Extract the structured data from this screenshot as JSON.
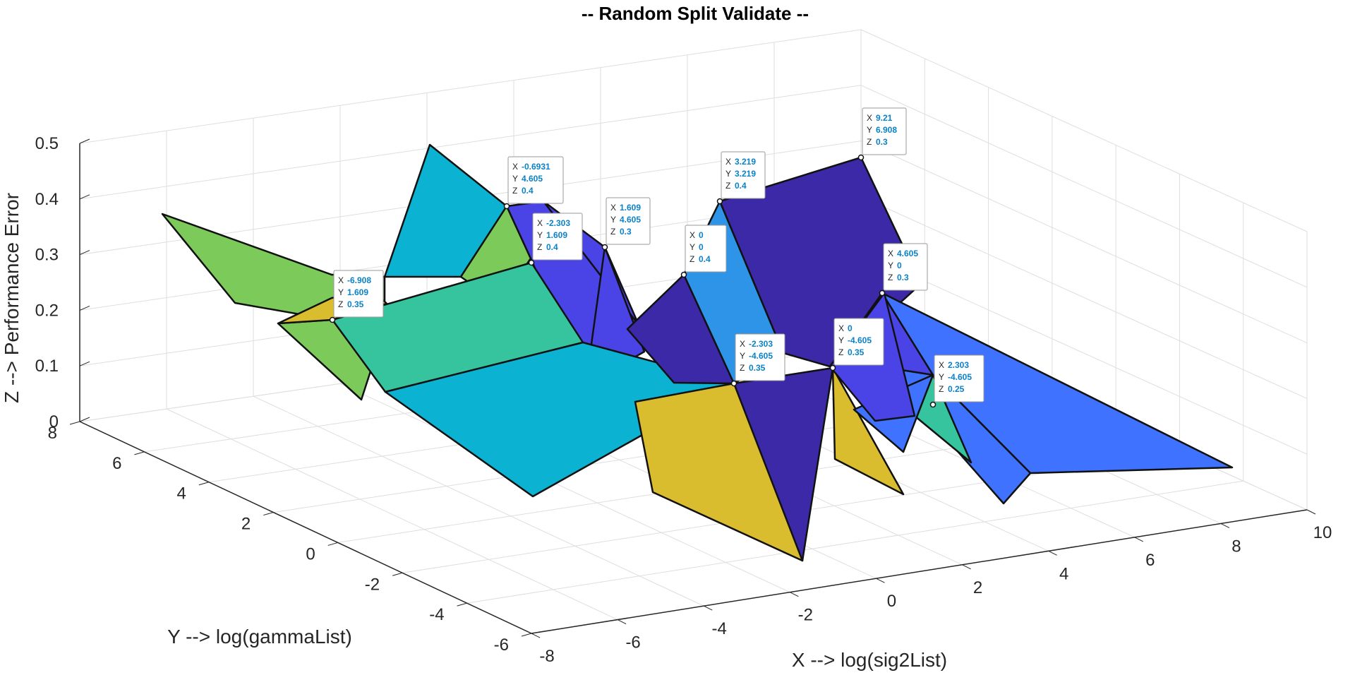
{
  "chart_data": {
    "type": "surface3d",
    "title": "-- Random Split Validate --",
    "xlabel": "X --> log(sig2List)",
    "ylabel": "Y --> log(gammaList)",
    "zlabel": "Z --> Performance Error",
    "xlim": [
      -8,
      10
    ],
    "ylim": [
      -6,
      8
    ],
    "zlim": [
      0,
      0.5
    ],
    "x_ticks": [
      "-8",
      "-6",
      "-4",
      "-2",
      "0",
      "2",
      "4",
      "6",
      "8",
      "10"
    ],
    "y_ticks": [
      "-6",
      "-4",
      "-2",
      "0",
      "2",
      "4",
      "6",
      "8"
    ],
    "z_ticks": [
      "0",
      "0.1",
      "0.2",
      "0.3",
      "0.4",
      "0.5"
    ],
    "grid": true,
    "facet_colors": [
      "#0BB2D1",
      "#3B29A8",
      "#4A44E6",
      "#2E94E8",
      "#3F72FF",
      "#35C49E",
      "#7CCB5A",
      "#DABD2E"
    ],
    "datatips": [
      {
        "x": "-0.6931",
        "y": "4.605",
        "z": "0.4"
      },
      {
        "x": "-2.303",
        "y": "1.609",
        "z": "0.4"
      },
      {
        "x": "1.609",
        "y": "4.605",
        "z": "0.3"
      },
      {
        "x": "3.219",
        "y": "3.219",
        "z": "0.4"
      },
      {
        "x": "9.21",
        "y": "6.908",
        "z": "0.3"
      },
      {
        "x": "0",
        "y": "0",
        "z": "0.4"
      },
      {
        "x": "4.605",
        "y": "0",
        "z": "0.3"
      },
      {
        "x": "-6.908",
        "y": "1.609",
        "z": "0.35"
      },
      {
        "x": "0",
        "y": "-4.605",
        "z": "0.35"
      },
      {
        "x": "-2.303",
        "y": "-4.605",
        "z": "0.35"
      },
      {
        "x": "2.303",
        "y": "-4.605",
        "z": "0.25"
      }
    ]
  }
}
